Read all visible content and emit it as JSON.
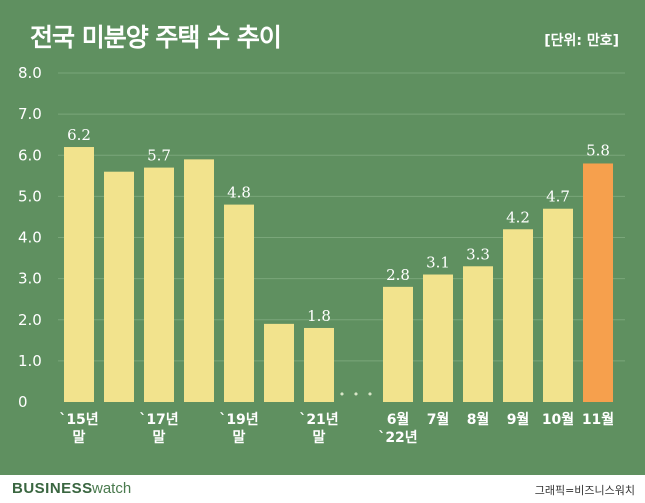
{
  "header": {
    "title": "전국 미분양 주택 수 추이",
    "unit": "[단위: 만호]"
  },
  "footer": {
    "brand_main": "BUSINESS",
    "brand_sub": "watch",
    "credit": "그래픽=비즈니스워치"
  },
  "colors": {
    "background": "#5f9060",
    "bar": "#f2e38d",
    "highlight_bar": "#f6a04d",
    "highlight_label": "#f5ef3c",
    "text": "#ffffff"
  },
  "chart_data": {
    "type": "bar",
    "title": "전국 미분양 주택 수 추이",
    "ylim": [
      0,
      8
    ],
    "yticks": [
      "0",
      "1.0",
      "2.0",
      "3.0",
      "4.0",
      "5.0",
      "6.0",
      "7.0",
      "8.0"
    ],
    "grid": true,
    "gap_marker": "• • •",
    "categories": [
      "`15년 말",
      "",
      "`17년 말",
      "",
      "`19년 말",
      "",
      "`21년 말",
      "6월 `22년",
      "7월",
      "8월",
      "9월",
      "10월",
      "11월"
    ],
    "x_label_lines": [
      [
        "`15년",
        "말"
      ],
      [],
      [
        "`17년",
        "말"
      ],
      [],
      [
        "`19년",
        "말"
      ],
      [],
      [
        "`21년",
        "말"
      ],
      [
        "6월",
        "`22년"
      ],
      [
        "7월"
      ],
      [
        "8월"
      ],
      [
        "9월"
      ],
      [
        "10월"
      ],
      [
        "11월"
      ]
    ],
    "values": [
      6.2,
      5.6,
      5.7,
      5.9,
      4.8,
      1.9,
      1.8,
      2.8,
      3.1,
      3.3,
      4.2,
      4.7,
      5.8
    ],
    "value_labels": [
      "6.2",
      "",
      "5.7",
      "",
      "4.8",
      "",
      "1.8",
      "2.8",
      "3.1",
      "3.3",
      "4.2",
      "4.7",
      "5.8"
    ],
    "highlight_index": 12
  }
}
